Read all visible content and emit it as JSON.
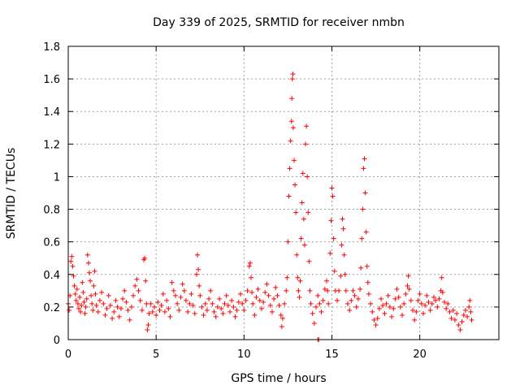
{
  "chart_data": {
    "type": "scatter",
    "title": "Day 339 of 2025, SRMTID for receiver nmbn",
    "xlabel": "GPS time / hours",
    "ylabel": "SRMTID / TECUs",
    "xlim": [
      0,
      24.5
    ],
    "ylim": [
      0,
      1.8
    ],
    "xticks": [
      0,
      5,
      10,
      15,
      20
    ],
    "yticks": [
      0,
      0.2,
      0.4,
      0.6,
      0.8,
      1,
      1.2,
      1.4,
      1.6,
      1.8
    ],
    "ytick_labels": [
      "0",
      "0.2",
      "0.4",
      "0.6",
      "0.8",
      "1",
      "1.2",
      "1.4",
      "1.6",
      "1.8"
    ],
    "grid": true,
    "marker": "+",
    "color": "#ff0000",
    "series": [
      {
        "name": "SRMTID",
        "points": [
          [
            0.0,
            0.22
          ],
          [
            0.05,
            0.18
          ],
          [
            0.1,
            0.27
          ],
          [
            0.15,
            0.48
          ],
          [
            0.2,
            0.51
          ],
          [
            0.25,
            0.45
          ],
          [
            0.3,
            0.39
          ],
          [
            0.35,
            0.33
          ],
          [
            0.4,
            0.28
          ],
          [
            0.45,
            0.24
          ],
          [
            0.5,
            0.31
          ],
          [
            0.55,
            0.22
          ],
          [
            0.6,
            0.19
          ],
          [
            0.65,
            0.26
          ],
          [
            0.7,
            0.17
          ],
          [
            0.75,
            0.21
          ],
          [
            0.8,
            0.35
          ],
          [
            0.85,
            0.29
          ],
          [
            0.9,
            0.23
          ],
          [
            0.95,
            0.16
          ],
          [
            1.0,
            0.2
          ],
          [
            1.05,
            0.25
          ],
          [
            1.1,
            0.52
          ],
          [
            1.15,
            0.47
          ],
          [
            1.2,
            0.41
          ],
          [
            1.25,
            0.36
          ],
          [
            1.3,
            0.27
          ],
          [
            1.35,
            0.22
          ],
          [
            1.4,
            0.18
          ],
          [
            1.45,
            0.33
          ],
          [
            1.5,
            0.42
          ],
          [
            1.55,
            0.28
          ],
          [
            1.6,
            0.21
          ],
          [
            1.7,
            0.17
          ],
          [
            1.8,
            0.24
          ],
          [
            1.9,
            0.29
          ],
          [
            2.0,
            0.22
          ],
          [
            2.1,
            0.15
          ],
          [
            2.2,
            0.19
          ],
          [
            2.3,
            0.27
          ],
          [
            2.4,
            0.21
          ],
          [
            2.5,
            0.13
          ],
          [
            2.6,
            0.17
          ],
          [
            2.7,
            0.24
          ],
          [
            2.8,
            0.2
          ],
          [
            2.9,
            0.14
          ],
          [
            3.0,
            0.19
          ],
          [
            3.1,
            0.25
          ],
          [
            3.2,
            0.3
          ],
          [
            3.3,
            0.23
          ],
          [
            3.4,
            0.18
          ],
          [
            3.5,
            0.12
          ],
          [
            3.6,
            0.2
          ],
          [
            3.7,
            0.27
          ],
          [
            3.8,
            0.33
          ],
          [
            3.9,
            0.37
          ],
          [
            4.0,
            0.3
          ],
          [
            4.1,
            0.24
          ],
          [
            4.2,
            0.18
          ],
          [
            4.3,
            0.49
          ],
          [
            4.35,
            0.5
          ],
          [
            4.4,
            0.36
          ],
          [
            4.45,
            0.22
          ],
          [
            4.5,
            0.06
          ],
          [
            4.55,
            0.09
          ],
          [
            4.6,
            0.16
          ],
          [
            4.7,
            0.22
          ],
          [
            4.8,
            0.17
          ],
          [
            4.9,
            0.2
          ],
          [
            5.0,
            0.15
          ],
          [
            5.1,
            0.23
          ],
          [
            5.2,
            0.18
          ],
          [
            5.3,
            0.21
          ],
          [
            5.4,
            0.28
          ],
          [
            5.5,
            0.17
          ],
          [
            5.6,
            0.24
          ],
          [
            5.7,
            0.19
          ],
          [
            5.8,
            0.14
          ],
          [
            5.9,
            0.35
          ],
          [
            6.0,
            0.3
          ],
          [
            6.1,
            0.27
          ],
          [
            6.2,
            0.22
          ],
          [
            6.3,
            0.18
          ],
          [
            6.4,
            0.26
          ],
          [
            6.5,
            0.34
          ],
          [
            6.6,
            0.3
          ],
          [
            6.7,
            0.24
          ],
          [
            6.8,
            0.17
          ],
          [
            6.9,
            0.22
          ],
          [
            7.0,
            0.28
          ],
          [
            7.1,
            0.21
          ],
          [
            7.2,
            0.16
          ],
          [
            7.3,
            0.4
          ],
          [
            7.35,
            0.52
          ],
          [
            7.4,
            0.43
          ],
          [
            7.45,
            0.33
          ],
          [
            7.5,
            0.27
          ],
          [
            7.6,
            0.2
          ],
          [
            7.7,
            0.15
          ],
          [
            7.8,
            0.22
          ],
          [
            7.9,
            0.18
          ],
          [
            8.0,
            0.25
          ],
          [
            8.1,
            0.3
          ],
          [
            8.2,
            0.22
          ],
          [
            8.3,
            0.17
          ],
          [
            8.4,
            0.14
          ],
          [
            8.5,
            0.2
          ],
          [
            8.6,
            0.25
          ],
          [
            8.7,
            0.19
          ],
          [
            8.8,
            0.16
          ],
          [
            8.9,
            0.22
          ],
          [
            9.0,
            0.27
          ],
          [
            9.1,
            0.21
          ],
          [
            9.2,
            0.17
          ],
          [
            9.3,
            0.24
          ],
          [
            9.4,
            0.2
          ],
          [
            9.5,
            0.14
          ],
          [
            9.6,
            0.18
          ],
          [
            9.7,
            0.23
          ],
          [
            9.8,
            0.28
          ],
          [
            9.9,
            0.22
          ],
          [
            10.0,
            0.18
          ],
          [
            10.1,
            0.24
          ],
          [
            10.2,
            0.3
          ],
          [
            10.3,
            0.45
          ],
          [
            10.35,
            0.47
          ],
          [
            10.4,
            0.38
          ],
          [
            10.45,
            0.29
          ],
          [
            10.5,
            0.22
          ],
          [
            10.6,
            0.15
          ],
          [
            10.7,
            0.26
          ],
          [
            10.8,
            0.31
          ],
          [
            10.9,
            0.24
          ],
          [
            11.0,
            0.19
          ],
          [
            11.1,
            0.23
          ],
          [
            11.2,
            0.29
          ],
          [
            11.3,
            0.34
          ],
          [
            11.4,
            0.27
          ],
          [
            11.5,
            0.21
          ],
          [
            11.6,
            0.17
          ],
          [
            11.7,
            0.25
          ],
          [
            11.8,
            0.32
          ],
          [
            11.9,
            0.27
          ],
          [
            12.0,
            0.21
          ],
          [
            12.1,
            0.15
          ],
          [
            12.15,
            0.08
          ],
          [
            12.2,
            0.13
          ],
          [
            12.3,
            0.22
          ],
          [
            12.4,
            0.3
          ],
          [
            12.45,
            0.38
          ],
          [
            12.5,
            0.6
          ],
          [
            12.55,
            0.88
          ],
          [
            12.6,
            1.05
          ],
          [
            12.65,
            1.22
          ],
          [
            12.7,
            1.34
          ],
          [
            12.72,
            1.48
          ],
          [
            12.75,
            1.6
          ],
          [
            12.78,
            1.63
          ],
          [
            12.8,
            1.3
          ],
          [
            12.85,
            1.1
          ],
          [
            12.9,
            0.95
          ],
          [
            12.95,
            0.78
          ],
          [
            13.0,
            0.52
          ],
          [
            13.05,
            0.38
          ],
          [
            13.1,
            0.3
          ],
          [
            13.15,
            0.26
          ],
          [
            13.2,
            0.36
          ],
          [
            13.25,
            0.62
          ],
          [
            13.3,
            0.84
          ],
          [
            13.35,
            1.02
          ],
          [
            13.4,
            0.74
          ],
          [
            13.45,
            0.58
          ],
          [
            13.5,
            1.2
          ],
          [
            13.55,
            1.31
          ],
          [
            13.6,
            1.0
          ],
          [
            13.65,
            0.78
          ],
          [
            13.7,
            0.48
          ],
          [
            13.75,
            0.3
          ],
          [
            13.8,
            0.22
          ],
          [
            13.9,
            0.16
          ],
          [
            14.0,
            0.1
          ],
          [
            14.1,
            0.2
          ],
          [
            14.2,
            0.27
          ],
          [
            14.3,
            0.22
          ],
          [
            14.4,
            0.17
          ],
          [
            14.5,
            0.24
          ],
          [
            14.6,
            0.31
          ],
          [
            14.7,
            0.36
          ],
          [
            14.75,
            0.3
          ],
          [
            14.8,
            0.22
          ],
          [
            14.9,
            0.53
          ],
          [
            14.95,
            0.73
          ],
          [
            15.0,
            0.93
          ],
          [
            15.05,
            0.88
          ],
          [
            15.1,
            0.62
          ],
          [
            15.15,
            0.42
          ],
          [
            15.2,
            0.3
          ],
          [
            15.3,
            0.24
          ],
          [
            15.4,
            0.3
          ],
          [
            15.5,
            0.39
          ],
          [
            15.55,
            0.58
          ],
          [
            15.6,
            0.74
          ],
          [
            15.65,
            0.68
          ],
          [
            15.7,
            0.52
          ],
          [
            15.75,
            0.4
          ],
          [
            15.8,
            0.3
          ],
          [
            15.9,
            0.22
          ],
          [
            16.0,
            0.18
          ],
          [
            16.1,
            0.24
          ],
          [
            16.2,
            0.3
          ],
          [
            16.3,
            0.27
          ],
          [
            16.4,
            0.2
          ],
          [
            16.5,
            0.25
          ],
          [
            16.6,
            0.31
          ],
          [
            16.65,
            0.44
          ],
          [
            16.7,
            0.62
          ],
          [
            16.75,
            0.8
          ],
          [
            16.8,
            1.05
          ],
          [
            16.85,
            1.11
          ],
          [
            16.9,
            0.9
          ],
          [
            16.95,
            0.66
          ],
          [
            17.0,
            0.45
          ],
          [
            17.05,
            0.35
          ],
          [
            17.1,
            0.28
          ],
          [
            17.2,
            0.22
          ],
          [
            17.3,
            0.17
          ],
          [
            17.4,
            0.12
          ],
          [
            17.5,
            0.09
          ],
          [
            17.6,
            0.13
          ],
          [
            17.7,
            0.19
          ],
          [
            17.8,
            0.25
          ],
          [
            17.9,
            0.21
          ],
          [
            18.0,
            0.16
          ],
          [
            18.1,
            0.22
          ],
          [
            18.2,
            0.27
          ],
          [
            18.3,
            0.2
          ],
          [
            18.4,
            0.14
          ],
          [
            18.5,
            0.19
          ],
          [
            18.6,
            0.25
          ],
          [
            18.7,
            0.31
          ],
          [
            18.8,
            0.26
          ],
          [
            18.9,
            0.2
          ],
          [
            19.0,
            0.15
          ],
          [
            19.1,
            0.22
          ],
          [
            19.2,
            0.28
          ],
          [
            19.3,
            0.33
          ],
          [
            19.35,
            0.39
          ],
          [
            19.4,
            0.31
          ],
          [
            19.5,
            0.24
          ],
          [
            19.6,
            0.18
          ],
          [
            19.7,
            0.12
          ],
          [
            19.8,
            0.17
          ],
          [
            19.9,
            0.24
          ],
          [
            20.0,
            0.28
          ],
          [
            20.1,
            0.22
          ],
          [
            20.2,
            0.16
          ],
          [
            20.3,
            0.21
          ],
          [
            20.4,
            0.27
          ],
          [
            20.5,
            0.23
          ],
          [
            20.6,
            0.18
          ],
          [
            20.7,
            0.22
          ],
          [
            20.8,
            0.26
          ],
          [
            20.9,
            0.24
          ],
          [
            21.0,
            0.2
          ],
          [
            21.1,
            0.25
          ],
          [
            21.2,
            0.3
          ],
          [
            21.25,
            0.38
          ],
          [
            21.3,
            0.29
          ],
          [
            21.4,
            0.23
          ],
          [
            21.5,
            0.19
          ],
          [
            21.6,
            0.22
          ],
          [
            21.7,
            0.17
          ],
          [
            21.8,
            0.13
          ],
          [
            21.9,
            0.18
          ],
          [
            22.0,
            0.12
          ],
          [
            22.1,
            0.16
          ],
          [
            22.2,
            0.09
          ],
          [
            22.3,
            0.06
          ],
          [
            22.4,
            0.11
          ],
          [
            22.5,
            0.15
          ],
          [
            22.6,
            0.18
          ],
          [
            22.7,
            0.14
          ],
          [
            22.8,
            0.2
          ],
          [
            22.85,
            0.24
          ],
          [
            22.9,
            0.17
          ],
          [
            22.95,
            0.12
          ],
          [
            14.2,
            0.0
          ],
          [
            14.25,
            0.0
          ]
        ]
      }
    ]
  }
}
